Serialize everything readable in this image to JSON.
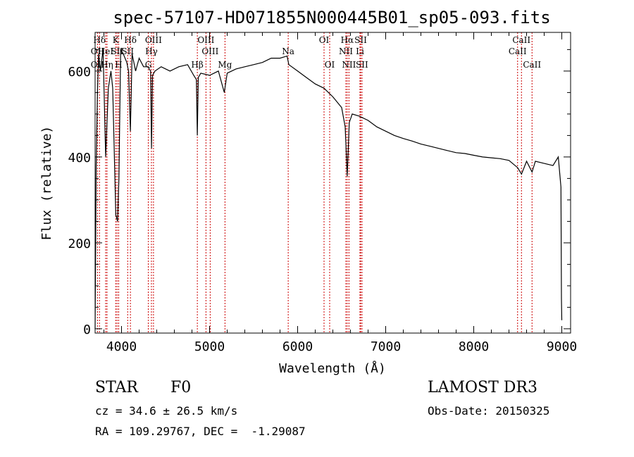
{
  "chart_data": {
    "type": "line",
    "title": "spec-57107-HD071855N000445B01_sp05-093.fits",
    "xlabel": "Wavelength (Å)",
    "ylabel": "Flux (relative)",
    "xlim": [
      3700,
      9100
    ],
    "ylim": [
      -10,
      690
    ],
    "xticks": [
      4000,
      5000,
      6000,
      7000,
      8000,
      9000
    ],
    "xtick_labels": [
      "4000",
      "5000",
      "6000",
      "7000",
      "8000",
      "9000"
    ],
    "yticks": [
      0,
      200,
      400,
      600
    ],
    "ytick_labels": [
      "0",
      "200",
      "400",
      "600"
    ],
    "series": [
      {
        "name": "spectrum",
        "x": [
          3700,
          3712,
          3728,
          3740,
          3760,
          3790,
          3820,
          3850,
          3880,
          3900,
          3935,
          3955,
          3970,
          3990,
          4020,
          4060,
          4080,
          4101,
          4120,
          4160,
          4200,
          4250,
          4300,
          4330,
          4341,
          4352,
          4380,
          4450,
          4550,
          4650,
          4750,
          4820,
          4850,
          4861,
          4872,
          4900,
          5000,
          5100,
          5167,
          5200,
          5300,
          5400,
          5500,
          5600,
          5700,
          5800,
          5880,
          5900,
          6000,
          6100,
          6200,
          6300,
          6400,
          6500,
          6540,
          6563,
          6586,
          6620,
          6700,
          6800,
          6900,
          7000,
          7100,
          7200,
          7300,
          7400,
          7500,
          7600,
          7700,
          7800,
          7900,
          8000,
          8100,
          8200,
          8300,
          8400,
          8498,
          8542,
          8600,
          8662,
          8700,
          8800,
          8900,
          8960,
          8990,
          8996,
          9000
        ],
        "y": [
          0,
          380,
          560,
          640,
          600,
          650,
          400,
          560,
          600,
          560,
          265,
          250,
          350,
          650,
          640,
          620,
          600,
          460,
          640,
          600,
          630,
          610,
          610,
          600,
          420,
          590,
          600,
          610,
          600,
          610,
          615,
          590,
          580,
          450,
          585,
          595,
          590,
          600,
          550,
          595,
          605,
          610,
          615,
          620,
          630,
          630,
          635,
          615,
          600,
          585,
          570,
          560,
          540,
          515,
          470,
          355,
          480,
          500,
          495,
          485,
          470,
          460,
          450,
          443,
          437,
          430,
          425,
          420,
          415,
          410,
          408,
          404,
          400,
          398,
          396,
          392,
          375,
          360,
          390,
          365,
          390,
          385,
          380,
          400,
          330,
          70,
          20
        ]
      }
    ],
    "line_ids": [
      {
        "label": "Hδ",
        "wavelength": 3750,
        "row": 1
      },
      {
        "label": "OII",
        "wavelength": 3727,
        "row": 2
      },
      {
        "label": "OII",
        "wavelength": 3727,
        "row": 3
      },
      {
        "label": "HeI",
        "wavelength": 3820,
        "row": 2
      },
      {
        "label": "Hη",
        "wavelength": 3835,
        "row": 3
      },
      {
        "label": "K",
        "wavelength": 3934,
        "row": 1
      },
      {
        "label": "SII",
        "wavelength": 3950,
        "row": 2
      },
      {
        "label": "H",
        "wavelength": 3968,
        "row": 3
      },
      {
        "label": "Hδ",
        "wavelength": 4101,
        "row": 1
      },
      {
        "label": "SII",
        "wavelength": 4070,
        "row": 2
      },
      {
        "label": "OIII",
        "wavelength": 4363,
        "row": 1
      },
      {
        "label": "Hγ",
        "wavelength": 4340,
        "row": 2
      },
      {
        "label": "G",
        "wavelength": 4304,
        "row": 3
      },
      {
        "label": "Hβ",
        "wavelength": 4861,
        "row": 3
      },
      {
        "label": "OIII",
        "wavelength": 4959,
        "row": 1
      },
      {
        "label": "OIII",
        "wavelength": 5007,
        "row": 2
      },
      {
        "label": "Mg",
        "wavelength": 5175,
        "row": 3
      },
      {
        "label": "Na",
        "wavelength": 5893,
        "row": 2
      },
      {
        "label": "OI",
        "wavelength": 6300,
        "row": 1
      },
      {
        "label": "OI",
        "wavelength": 6364,
        "row": 3
      },
      {
        "label": "Hα",
        "wavelength": 6563,
        "row": 1
      },
      {
        "label": "NII",
        "wavelength": 6548,
        "row": 2
      },
      {
        "label": "NII",
        "wavelength": 6583,
        "row": 3
      },
      {
        "label": "SII",
        "wavelength": 6716,
        "row": 1
      },
      {
        "label": "Li",
        "wavelength": 6708,
        "row": 2
      },
      {
        "label": "SII",
        "wavelength": 6731,
        "row": 3
      },
      {
        "label": "CaII",
        "wavelength": 8542,
        "row": 1
      },
      {
        "label": "CaII",
        "wavelength": 8498,
        "row": 2
      },
      {
        "label": "CaII",
        "wavelength": 8662,
        "row": 3
      }
    ],
    "line_marker_color": "#cc0000"
  },
  "info": {
    "class_label": "STAR",
    "subclass": "F0",
    "survey": "LAMOST DR3",
    "redshift": "cz = 34.6 ± 26.5 km/s",
    "obs_date": "Obs-Date: 20150325",
    "coords": "RA = 109.29767, DEC =  -1.29087"
  }
}
